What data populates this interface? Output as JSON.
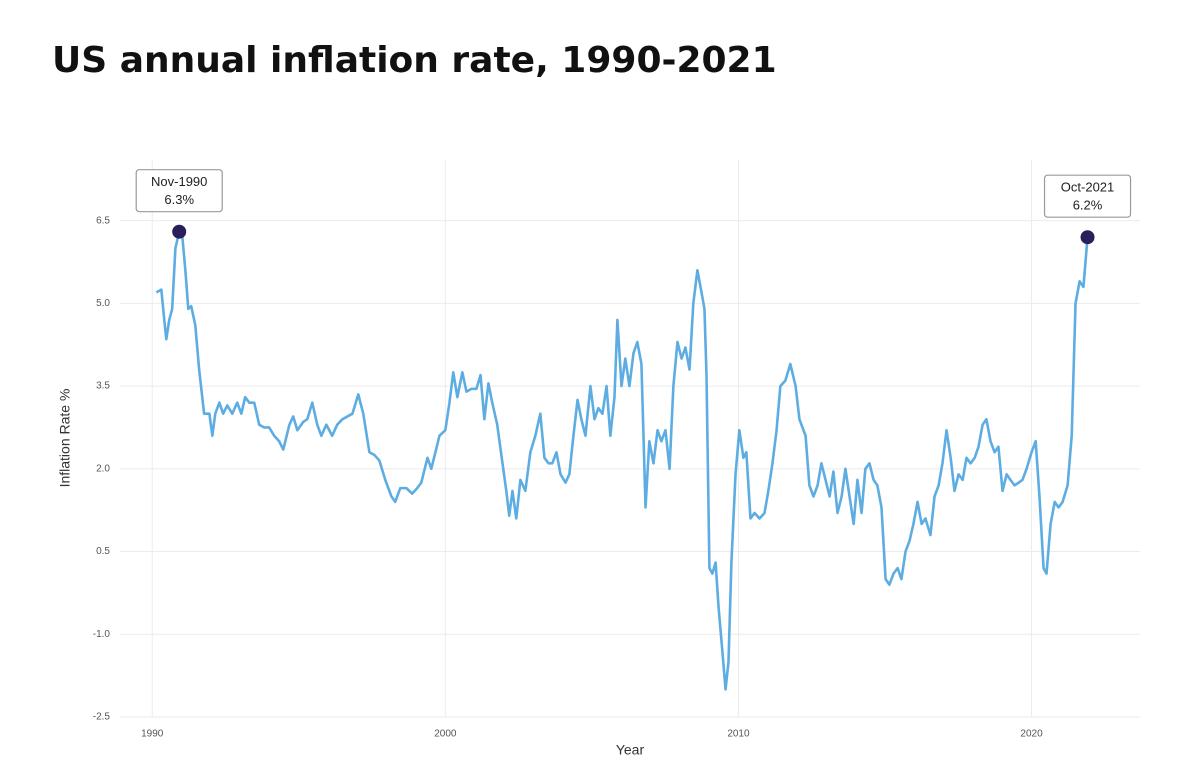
{
  "chart_data": {
    "type": "line",
    "title": "US annual inflation rate, 1990-2021",
    "x_label": "Year",
    "y_label": "Inflation Rate %",
    "xlim": [
      1988.9,
      2023.7
    ],
    "xticks": [
      1990,
      2000,
      2010,
      2020
    ],
    "ylim": [
      -2.5,
      7.6
    ],
    "yticks": [
      -2.5,
      {
        "value": -1,
        "label": "-1.0"
      },
      0.5,
      {
        "value": 2,
        "label": "2.0"
      },
      3.5,
      {
        "value": 5,
        "label": "5.0"
      },
      6.5
    ],
    "grid": true,
    "x": [
      1990.14,
      1990.31,
      1990.41,
      1990.48,
      1990.58,
      1990.68,
      1990.79,
      1990.92,
      1991.02,
      1991.13,
      1991.23,
      1991.33,
      1991.47,
      1991.6,
      1991.77,
      1991.95,
      1992.05,
      1992.15,
      1992.29,
      1992.42,
      1992.56,
      1992.73,
      1992.9,
      1993.04,
      1993.17,
      1993.31,
      1993.48,
      1993.65,
      1993.82,
      1993.99,
      1994.16,
      1994.33,
      1994.47,
      1994.68,
      1994.81,
      1994.95,
      1995.15,
      1995.29,
      1995.46,
      1995.63,
      1995.77,
      1995.94,
      1996.14,
      1996.31,
      1996.49,
      1996.66,
      1996.83,
      1997.03,
      1997.2,
      1997.41,
      1997.58,
      1997.75,
      1997.95,
      1998.16,
      1998.29,
      1998.46,
      1998.67,
      1998.87,
      1999.04,
      1999.18,
      1999.39,
      1999.52,
      1999.66,
      1999.8,
      2000.0,
      2000.14,
      2000.27,
      2000.41,
      2000.58,
      2000.72,
      2000.89,
      2001.06,
      2001.2,
      2001.33,
      2001.47,
      2001.6,
      2001.77,
      2001.95,
      2002.08,
      2002.18,
      2002.29,
      2002.42,
      2002.56,
      2002.73,
      2002.9,
      2003.07,
      2003.24,
      2003.38,
      2003.52,
      2003.65,
      2003.79,
      2003.93,
      2004.1,
      2004.23,
      2004.37,
      2004.51,
      2004.64,
      2004.78,
      2004.95,
      2005.09,
      2005.22,
      2005.36,
      2005.5,
      2005.63,
      2005.77,
      2005.87,
      2006.01,
      2006.14,
      2006.28,
      2006.42,
      2006.55,
      2006.69,
      2006.83,
      2006.96,
      2007.1,
      2007.24,
      2007.37,
      2007.51,
      2007.65,
      2007.78,
      2007.92,
      2008.06,
      2008.19,
      2008.33,
      2008.46,
      2008.6,
      2008.74,
      2008.84,
      2008.91,
      2009.01,
      2009.11,
      2009.22,
      2009.32,
      2009.45,
      2009.56,
      2009.66,
      2009.76,
      2009.9,
      2010.03,
      2010.17,
      2010.27,
      2010.41,
      2010.55,
      2010.72,
      2010.89,
      2011.02,
      2011.16,
      2011.3,
      2011.43,
      2011.6,
      2011.77,
      2011.95,
      2012.08,
      2012.29,
      2012.42,
      2012.56,
      2012.7,
      2012.83,
      2012.97,
      2013.11,
      2013.24,
      2013.38,
      2013.52,
      2013.65,
      2013.79,
      2013.93,
      2014.06,
      2014.2,
      2014.33,
      2014.47,
      2014.61,
      2014.74,
      2014.88,
      2015.02,
      2015.15,
      2015.29,
      2015.43,
      2015.56,
      2015.7,
      2015.84,
      2015.97,
      2016.11,
      2016.25,
      2016.38,
      2016.55,
      2016.69,
      2016.83,
      2016.96,
      2017.1,
      2017.24,
      2017.37,
      2017.51,
      2017.65,
      2017.78,
      2017.92,
      2018.06,
      2018.19,
      2018.33,
      2018.46,
      2018.6,
      2018.74,
      2018.87,
      2019.01,
      2019.15,
      2019.28,
      2019.42,
      2019.56,
      2019.69,
      2019.83,
      2020.0,
      2020.14,
      2020.27,
      2020.41,
      2020.51,
      2020.65,
      2020.79,
      2020.92,
      2021.06,
      2021.23,
      2021.37,
      2021.5,
      2021.64,
      2021.77,
      2021.91
    ],
    "series": [
      {
        "color": "#5dade2",
        "values": [
          5.2,
          5.25,
          4.7,
          4.35,
          4.7,
          4.9,
          6.0,
          6.3,
          6.25,
          5.6,
          4.9,
          4.95,
          4.6,
          3.8,
          3.0,
          3.0,
          2.6,
          3.0,
          3.2,
          3.0,
          3.15,
          3.0,
          3.2,
          3.0,
          3.3,
          3.2,
          3.2,
          2.8,
          2.75,
          2.75,
          2.6,
          2.5,
          2.35,
          2.8,
          2.95,
          2.7,
          2.85,
          2.9,
          3.2,
          2.8,
          2.6,
          2.8,
          2.6,
          2.8,
          2.9,
          2.95,
          3.0,
          3.35,
          3.0,
          2.3,
          2.25,
          2.15,
          1.8,
          1.5,
          1.4,
          1.65,
          1.65,
          1.55,
          1.65,
          1.75,
          2.2,
          2.0,
          2.3,
          2.6,
          2.7,
          3.2,
          3.75,
          3.3,
          3.75,
          3.4,
          3.45,
          3.45,
          3.7,
          2.9,
          3.55,
          3.2,
          2.8,
          2.1,
          1.6,
          1.15,
          1.6,
          1.1,
          1.8,
          1.6,
          2.3,
          2.6,
          3.0,
          2.2,
          2.1,
          2.1,
          2.3,
          1.9,
          1.75,
          1.9,
          2.6,
          3.25,
          2.9,
          2.6,
          3.5,
          2.9,
          3.1,
          3.0,
          3.5,
          2.6,
          3.3,
          4.7,
          3.5,
          4.0,
          3.5,
          4.1,
          4.3,
          3.9,
          1.3,
          2.5,
          2.1,
          2.7,
          2.5,
          2.7,
          2.0,
          3.5,
          4.3,
          4.0,
          4.2,
          3.8,
          5.0,
          5.6,
          5.2,
          4.9,
          3.7,
          0.2,
          0.1,
          0.3,
          -0.5,
          -1.3,
          -2.0,
          -1.5,
          0.3,
          1.9,
          2.7,
          2.2,
          2.3,
          1.1,
          1.2,
          1.1,
          1.2,
          1.6,
          2.1,
          2.7,
          3.5,
          3.6,
          3.9,
          3.5,
          2.9,
          2.6,
          1.7,
          1.5,
          1.7,
          2.1,
          1.8,
          1.5,
          1.95,
          1.2,
          1.5,
          2.0,
          1.5,
          1.0,
          1.8,
          1.2,
          2.0,
          2.1,
          1.8,
          1.7,
          1.3,
          0.0,
          -0.1,
          0.1,
          0.2,
          0.0,
          0.5,
          0.7,
          1.0,
          1.4,
          1.0,
          1.1,
          0.8,
          1.5,
          1.7,
          2.1,
          2.7,
          2.2,
          1.6,
          1.9,
          1.8,
          2.2,
          2.1,
          2.2,
          2.4,
          2.8,
          2.9,
          2.5,
          2.3,
          2.4,
          1.6,
          1.9,
          1.8,
          1.7,
          1.75,
          1.8,
          2.0,
          2.3,
          2.5,
          1.5,
          0.2,
          0.1,
          1.0,
          1.4,
          1.3,
          1.4,
          1.7,
          2.6,
          5.0,
          5.4,
          5.3,
          6.2
        ]
      }
    ],
    "annotations": [
      {
        "x": 1990.92,
        "y": 6.3,
        "date": "Nov-1990",
        "label": "6.3%",
        "color": "#2a1f5c"
      },
      {
        "x": 2021.91,
        "y": 6.2,
        "date": "Oct-2021",
        "label": "6.2%",
        "color": "#2a1f5c"
      }
    ]
  }
}
